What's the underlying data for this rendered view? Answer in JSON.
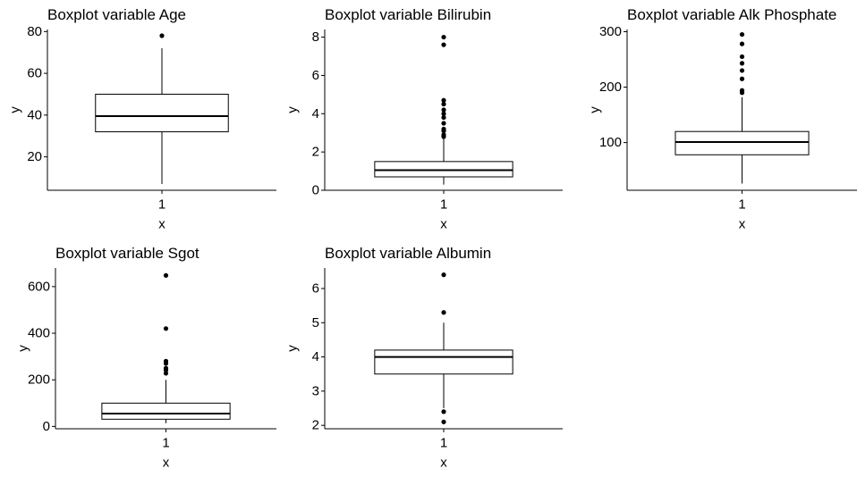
{
  "chart_data": [
    {
      "type": "boxplot",
      "title": "Boxplot variable Age",
      "xlabel": "x",
      "ylabel": "y",
      "categories": [
        "1"
      ],
      "xtick_labels": [
        "1"
      ],
      "yticks": [
        20,
        40,
        60,
        80
      ],
      "ytick_labels": [
        "20",
        "40",
        "60",
        "80"
      ],
      "ylim": [
        4,
        81
      ],
      "box": {
        "whisker_low": 7,
        "q1": 32,
        "median": 39.5,
        "q3": 50,
        "whisker_high": 72
      },
      "outliers": [
        78
      ],
      "grid": false,
      "legend": "none"
    },
    {
      "type": "boxplot",
      "title": "Boxplot variable Bilirubin",
      "xlabel": "x",
      "ylabel": "y",
      "categories": [
        "1"
      ],
      "xtick_labels": [
        "1"
      ],
      "yticks": [
        0,
        2,
        4,
        6,
        8
      ],
      "ytick_labels": [
        "0",
        "2",
        "4",
        "6",
        "8"
      ],
      "ylim": [
        0,
        8.4
      ],
      "box": {
        "whisker_low": 0.3,
        "q1": 0.7,
        "median": 1.05,
        "q3": 1.5,
        "whisker_high": 2.7
      },
      "outliers": [
        2.8,
        2.9,
        3.1,
        3.2,
        3.5,
        3.8,
        4.0,
        4.2,
        4.5,
        4.7,
        7.6,
        8.0
      ],
      "grid": false,
      "legend": "none"
    },
    {
      "type": "boxplot",
      "title": "Boxplot variable Alk Phosphate",
      "xlabel": "x",
      "ylabel": "y",
      "categories": [
        "1"
      ],
      "xtick_labels": [
        "1"
      ],
      "yticks": [
        100,
        200,
        300
      ],
      "ytick_labels": [
        "100",
        "200",
        "300"
      ],
      "ylim": [
        14,
        304
      ],
      "box": {
        "whisker_low": 26,
        "q1": 78,
        "median": 101,
        "q3": 120,
        "whisker_high": 182
      },
      "outliers": [
        190,
        194,
        215,
        230,
        243,
        255,
        278,
        295
      ],
      "grid": false,
      "legend": "none"
    },
    {
      "type": "boxplot",
      "title": "Boxplot variable Sgot",
      "xlabel": "x",
      "ylabel": "y",
      "categories": [
        "1"
      ],
      "xtick_labels": [
        "1"
      ],
      "yticks": [
        0,
        200,
        400,
        600
      ],
      "ytick_labels": [
        "0",
        "200",
        "400",
        "600"
      ],
      "ylim": [
        -10,
        680
      ],
      "box": {
        "whisker_low": 14,
        "q1": 31,
        "median": 55,
        "q3": 100,
        "whisker_high": 200
      },
      "outliers": [
        228,
        242,
        250,
        270,
        280,
        420,
        648
      ],
      "grid": false,
      "legend": "none"
    },
    {
      "type": "boxplot",
      "title": "Boxplot variable Albumin",
      "xlabel": "x",
      "ylabel": "y",
      "categories": [
        "1"
      ],
      "xtick_labels": [
        "1"
      ],
      "yticks": [
        2,
        3,
        4,
        5,
        6
      ],
      "ytick_labels": [
        "2",
        "3",
        "4",
        "5",
        "6"
      ],
      "ylim": [
        1.9,
        6.6
      ],
      "box": {
        "whisker_low": 2.5,
        "q1": 3.5,
        "median": 4.0,
        "q3": 4.2,
        "whisker_high": 5.0
      },
      "outliers": [
        2.1,
        2.4,
        5.3,
        6.4
      ],
      "grid": false,
      "legend": "none"
    }
  ],
  "colors": {
    "ink": "#000000",
    "background": "#ffffff",
    "box_fill": "#ffffff"
  }
}
